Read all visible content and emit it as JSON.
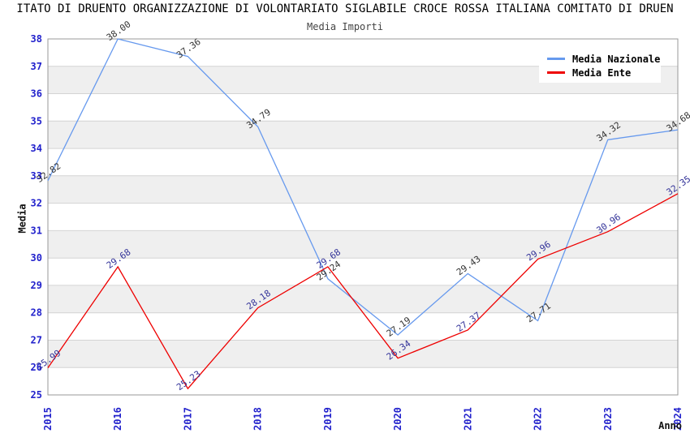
{
  "title": "ITATO DI DRUENTO ORGANIZZAZIONE DI VOLONTARIATO SIGLABILE CROCE ROSSA ITALIANA COMITATO DI DRUEN",
  "subtitle": "Media Importi",
  "chart_data": {
    "type": "line",
    "x": [
      2015,
      2016,
      2017,
      2018,
      2019,
      2020,
      2021,
      2022,
      2023,
      2024
    ],
    "series": [
      {
        "name": "Media Nazionale",
        "color": "#6699EE",
        "label_color": "#333333",
        "values": [
          32.82,
          38.0,
          37.36,
          34.79,
          29.24,
          27.19,
          29.43,
          27.71,
          34.32,
          34.68
        ]
      },
      {
        "name": "Media Ente",
        "color": "#EE0000",
        "label_color": "#333399",
        "values": [
          25.99,
          29.68,
          25.23,
          28.18,
          29.68,
          26.34,
          27.37,
          29.96,
          30.96,
          32.35
        ]
      }
    ],
    "xlabel": "Anno",
    "ylabel": "Media",
    "ylim": [
      25,
      38
    ],
    "y_ticks": [
      25,
      26,
      27,
      28,
      29,
      30,
      31,
      32,
      33,
      34,
      35,
      36,
      37,
      38
    ],
    "grid": "horizontal",
    "band_colors": [
      "#ffffff",
      "#efefef"
    ],
    "gridline_color": "#d4d4d4",
    "plot_border_color": "#999999",
    "axis_tick_color": "#2222CC",
    "legend_position": "top-right",
    "value_label_rotation_deg": -35,
    "tick_label_rotation_deg": -90
  }
}
